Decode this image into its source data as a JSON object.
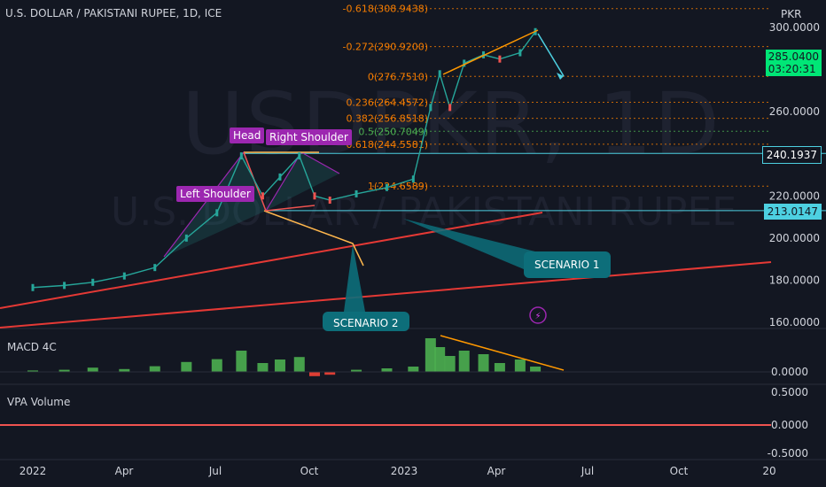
{
  "header": {
    "title": "U.S. DOLLAR / PAKISTANI RUPEE, 1D, ICE"
  },
  "watermark": {
    "symbol": "USDPKR, 1D",
    "name": "U.S. DOLLAR / PAKISTANI RUPEE"
  },
  "currency_label": "PKR",
  "price_tags": {
    "last_price": "285.0400",
    "countdown": "03:20:31",
    "level_1": "240.1937",
    "level_2": "213.0147"
  },
  "fib_levels": [
    {
      "label": "-0.618(308.9438)",
      "price": 308.9438,
      "color": "#f57c00"
    },
    {
      "label": "-0.272(290.9200)",
      "price": 290.92,
      "color": "#f57c00"
    },
    {
      "label": "0(276.7510)",
      "price": 276.751,
      "color": "#f57c00"
    },
    {
      "label": "0.236(264.4572)",
      "price": 264.4572,
      "color": "#f57c00"
    },
    {
      "label": "0.382(256.8518)",
      "price": 256.8518,
      "color": "#f57c00"
    },
    {
      "label": "0.5(250.7049)",
      "price": 250.7049,
      "color": "#4caf50"
    },
    {
      "label": "0.618(244.5581)",
      "price": 244.5581,
      "color": "#f57c00"
    },
    {
      "label": "1(224.6589)",
      "price": 224.6589,
      "color": "#f57c00"
    }
  ],
  "pattern_labels": {
    "head": "Head",
    "left_shoulder": "Left Shoulder",
    "right_shoulder": "Right Shoulder"
  },
  "scenarios": {
    "s1": "SCENARIO 1",
    "s2": "SCENARIO 2"
  },
  "panels": {
    "macd": "MACD 4C",
    "volume": "VPA Volume"
  },
  "colors": {
    "bg": "#131722",
    "up": "#26a69a",
    "down": "#ef5350",
    "fib": "#f57c00",
    "trend": "#e53935",
    "cyan": "#4dd0e1",
    "macd_up": "#4caf50",
    "macd_down": "#f44336"
  },
  "chart_data": [
    {
      "type": "line",
      "title": "U.S. DOLLAR / PAKISTANI RUPEE, 1D, ICE",
      "xlabel": "",
      "ylabel": "",
      "x_ticks": [
        "2022",
        "Apr",
        "Jul",
        "Oct",
        "2023",
        "Apr",
        "Jul",
        "Oct",
        "20"
      ],
      "y_ticks": [
        "160.0000",
        "180.0000",
        "200.0000",
        "220.0000",
        "260.0000",
        "300.0000"
      ],
      "ylim": [
        155,
        315
      ],
      "x": [
        "2022-01-01",
        "2022-02-01",
        "2022-03-01",
        "2022-04-01",
        "2022-05-01",
        "2022-06-01",
        "2022-07-01",
        "2022-07-25",
        "2022-08-15",
        "2022-09-01",
        "2022-09-20",
        "2022-10-05",
        "2022-10-20",
        "2022-11-15",
        "2022-12-15",
        "2023-01-10",
        "2023-01-27",
        "2023-02-05",
        "2023-02-15",
        "2023-03-01",
        "2023-03-20",
        "2023-04-05",
        "2023-04-25",
        "2023-05-10"
      ],
      "series": [
        {
          "values": [
            176.5,
            177.5,
            179,
            182,
            186,
            200,
            212,
            239,
            220,
            229,
            239,
            220,
            218,
            221,
            224,
            228,
            262,
            278,
            262,
            283,
            287,
            285,
            288,
            298
          ]
        }
      ],
      "grid": true
    },
    {
      "type": "bar",
      "title": "MACD 4C",
      "x_ticks": [
        "0.0000"
      ],
      "series": [
        {
          "values": [
            0.4,
            0.6,
            1.2,
            0.8,
            1.6,
            2.8,
            3.6,
            6.0,
            2.5,
            3.5,
            4.2,
            -1.2,
            -0.8,
            0.6,
            1.0,
            1.5,
            9.5,
            7.0,
            4.5,
            6.0,
            5.0,
            2.5,
            3.5,
            1.5
          ]
        }
      ],
      "y_ticks": [
        "0.0000"
      ]
    },
    {
      "type": "line",
      "title": "VPA Volume",
      "y_ticks": [
        "0.5000",
        "0.0000",
        "-0.5000"
      ],
      "series": [
        {
          "values": [
            0,
            0
          ]
        }
      ]
    }
  ]
}
